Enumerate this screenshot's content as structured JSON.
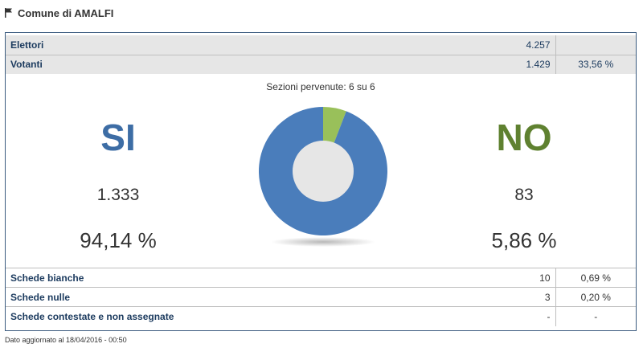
{
  "header": {
    "title": "Comune di AMALFI",
    "icon": "flag-icon"
  },
  "summary": {
    "elettori": {
      "label": "Elettori",
      "value": "4.257",
      "pct": ""
    },
    "votanti": {
      "label": "Votanti",
      "value": "1.429",
      "pct": "33,56 %"
    }
  },
  "sezioni": "Sezioni pervenute: 6 su 6",
  "si": {
    "label": "SI",
    "count": "1.333",
    "pct": "94,14 %",
    "color": "#3d6da5"
  },
  "no": {
    "label": "NO",
    "count": "83",
    "pct": "5,86 %",
    "color": "#5f8130"
  },
  "chart_data": {
    "type": "pie",
    "labels": [
      "SI",
      "NO"
    ],
    "values": [
      94.14,
      5.86
    ],
    "colors": [
      "#4a7dbb",
      "#99c05a"
    ]
  },
  "details": [
    {
      "label": "Schede bianche",
      "value": "10",
      "pct": "0,69 %"
    },
    {
      "label": "Schede nulle",
      "value": "3",
      "pct": "0,20 %"
    },
    {
      "label": "Schede contestate e non assegnate",
      "value": "-",
      "pct": "-"
    }
  ],
  "footer": "Dato aggiornato al 18/04/2016 - 00:50"
}
